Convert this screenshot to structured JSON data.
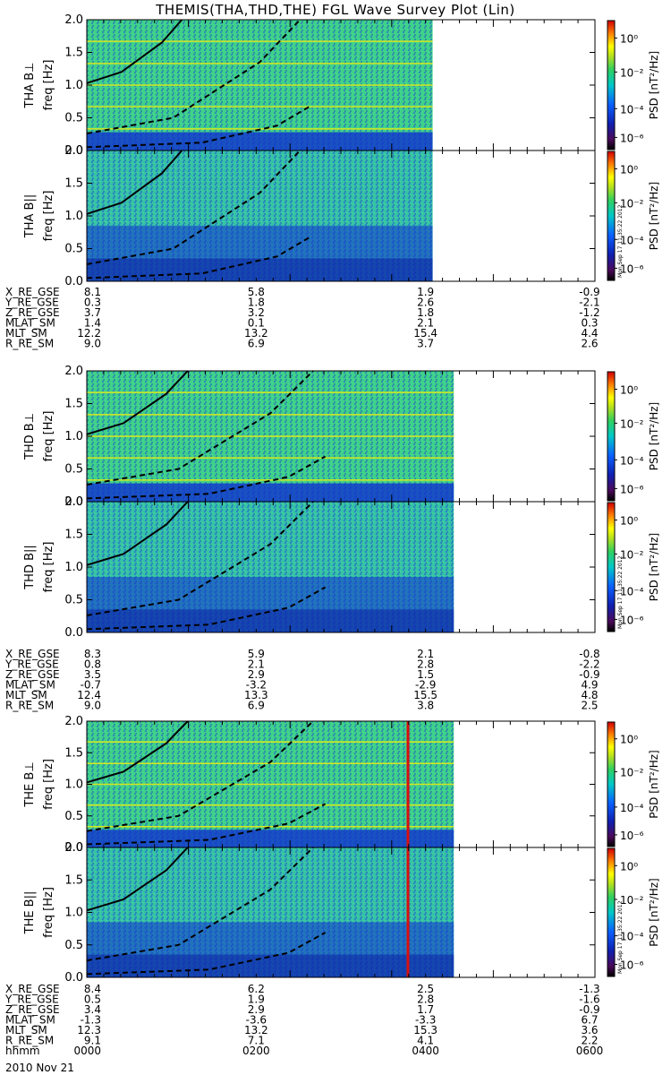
{
  "title": "THEMIS(THA,THD,THE) FGL Wave Survey Plot (Lin)",
  "chart_data": [
    {
      "type": "heatmap",
      "name": "THA B⊥",
      "probe_label": "THA B⊥",
      "ylabel": "freq [Hz]",
      "ylim": [
        0,
        2
      ],
      "yticks": [
        "0.0",
        "0.5",
        "1.0",
        "1.5",
        "2.0"
      ],
      "cbar_label": "PSD [nT²/Hz]",
      "cbar_ticks": [
        "10⁰",
        "10⁻²",
        "10⁻⁴",
        "10⁻⁶"
      ],
      "data_end_hhmm": "0405",
      "curves": {
        "solid": [
          [
            0,
            1.03
          ],
          [
            60,
            1.2
          ],
          [
            130,
            1.65
          ],
          [
            165,
            2.0
          ]
        ],
        "dashed_upper": [
          [
            0,
            0.26
          ],
          [
            150,
            0.5
          ],
          [
            300,
            1.35
          ],
          [
            370,
            2.0
          ]
        ],
        "dashed_lower": [
          [
            0,
            0.05
          ],
          [
            200,
            0.12
          ],
          [
            330,
            0.38
          ],
          [
            390,
            0.69
          ]
        ]
      }
    },
    {
      "type": "heatmap",
      "name": "THA B||",
      "probe_label": "THA B||",
      "ylabel": "freq [Hz]",
      "ylim": [
        0,
        2
      ],
      "yticks": [
        "0.0",
        "0.5",
        "1.0",
        "1.5",
        "2.0"
      ],
      "cbar_label": "PSD [nT²/Hz]",
      "cbar_ticks": [
        "10⁰",
        "10⁻²",
        "10⁻⁴",
        "10⁻⁶"
      ],
      "stamp": "Mon Sep 17 11:35:22 2012",
      "data_end_hhmm": "0405"
    },
    {
      "type": "heatmap",
      "name": "THD B⊥",
      "probe_label": "THD B⊥",
      "ylabel": "freq [Hz]",
      "ylim": [
        0,
        2
      ],
      "yticks": [
        "0.0",
        "0.5",
        "1.0",
        "1.5",
        "2.0"
      ],
      "cbar_label": "PSD [nT²/Hz]",
      "cbar_ticks": [
        "10⁰",
        "10⁻²",
        "10⁻⁴",
        "10⁻⁶"
      ],
      "data_end_hhmm": "0420"
    },
    {
      "type": "heatmap",
      "name": "THD B||",
      "probe_label": "THD B||",
      "ylabel": "freq [Hz]",
      "ylim": [
        0,
        2
      ],
      "yticks": [
        "0.0",
        "0.5",
        "1.0",
        "1.5",
        "2.0"
      ],
      "cbar_label": "PSD [nT²/Hz]",
      "cbar_ticks": [
        "10⁰",
        "10⁻²",
        "10⁻⁴",
        "10⁻⁶"
      ],
      "stamp": "Mon Sep 17 11:35:22 2012",
      "data_end_hhmm": "0420"
    },
    {
      "type": "heatmap",
      "name": "THE B⊥",
      "probe_label": "THE B⊥",
      "ylabel": "freq [Hz]",
      "ylim": [
        0,
        2
      ],
      "yticks": [
        "0.0",
        "0.5",
        "1.0",
        "1.5",
        "2.0"
      ],
      "cbar_label": "PSD [nT²/Hz]",
      "cbar_ticks": [
        "10⁰",
        "10⁻²",
        "10⁻⁴",
        "10⁻⁶"
      ],
      "data_end_hhmm": "0420"
    },
    {
      "type": "heatmap",
      "name": "THE B||",
      "probe_label": "THE B||",
      "ylabel": "freq [Hz]",
      "ylim": [
        0,
        2
      ],
      "yticks": [
        "0.0",
        "0.5",
        "1.0",
        "1.5",
        "2.0"
      ],
      "cbar_label": "PSD [nT²/Hz]",
      "cbar_ticks": [
        "10⁰",
        "10⁻²",
        "10⁻⁴",
        "10⁻⁶"
      ],
      "stamp": "Mon Sep 17 11:35:22 2012",
      "data_end_hhmm": "0420"
    }
  ],
  "ephemeris": [
    {
      "rows": [
        {
          "label": "X_RE_GSE",
          "values": [
            "8.1",
            "5.8",
            "1.9",
            "-0.9"
          ]
        },
        {
          "label": "Y_RE_GSE",
          "values": [
            "0.3",
            "1.8",
            "2.6",
            "-2.1"
          ]
        },
        {
          "label": "Z_RE_GSE",
          "values": [
            "3.7",
            "3.2",
            "1.8",
            "-1.2"
          ]
        },
        {
          "label": "MLAT_SM",
          "values": [
            "1.4",
            "0.1",
            "2.1",
            "0.3"
          ]
        },
        {
          "label": "MLT_SM",
          "values": [
            "12.2",
            "13.2",
            "15.4",
            "4.4"
          ]
        },
        {
          "label": "R_RE_SM",
          "values": [
            "9.0",
            "6.9",
            "3.7",
            "2.6"
          ]
        }
      ]
    },
    {
      "rows": [
        {
          "label": "X_RE_GSE",
          "values": [
            "8.3",
            "5.9",
            "2.1",
            "-0.8"
          ]
        },
        {
          "label": "Y_RE_GSE",
          "values": [
            "0.8",
            "2.1",
            "2.8",
            "-2.2"
          ]
        },
        {
          "label": "Z_RE_GSE",
          "values": [
            "3.5",
            "2.9",
            "1.5",
            "-0.9"
          ]
        },
        {
          "label": "MLAT_SM",
          "values": [
            "-0.7",
            "-3.2",
            "-2.9",
            "4.9"
          ]
        },
        {
          "label": "MLT_SM",
          "values": [
            "12.4",
            "13.3",
            "15.5",
            "4.8"
          ]
        },
        {
          "label": "R_RE_SM",
          "values": [
            "9.0",
            "6.9",
            "3.8",
            "2.5"
          ]
        }
      ]
    },
    {
      "rows": [
        {
          "label": "X_RE_GSE",
          "values": [
            "8.4",
            "6.2",
            "2.5",
            "-1.3"
          ]
        },
        {
          "label": "Y_RE_GSE",
          "values": [
            "0.5",
            "1.9",
            "2.8",
            "-1.6"
          ]
        },
        {
          "label": "Z_RE_GSE",
          "values": [
            "3.4",
            "2.9",
            "1.7",
            "-0.9"
          ]
        },
        {
          "label": "MLAT_SM",
          "values": [
            "-1.3",
            "-3.6",
            "-3.3",
            "6.7"
          ]
        },
        {
          "label": "MLT_SM",
          "values": [
            "12.3",
            "13.2",
            "15.3",
            "3.6"
          ]
        },
        {
          "label": "R_RE_SM",
          "values": [
            "9.1",
            "7.1",
            "4.1",
            "2.2"
          ]
        },
        {
          "label": "hhmm",
          "values": [
            "0000",
            "0200",
            "0400",
            "0600"
          ]
        }
      ]
    }
  ],
  "date_label": "2010 Nov 21"
}
